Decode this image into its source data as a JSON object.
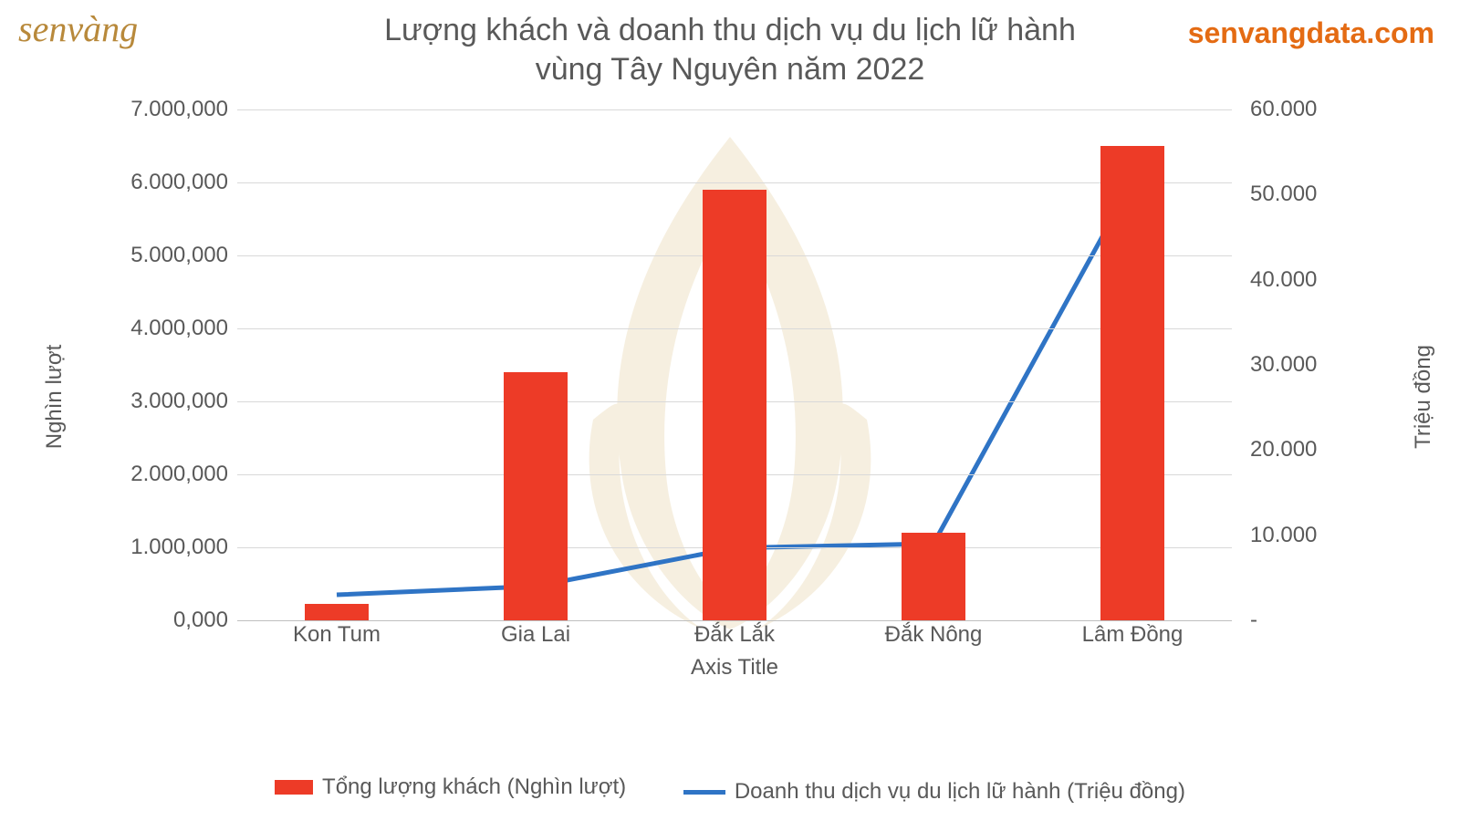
{
  "branding": {
    "logo_text": "senvàng",
    "logo_color": "#b8893b",
    "site_url": "senvangdata.com",
    "site_url_color": "#e46b13"
  },
  "chart": {
    "type": "bar+line-dual-axis",
    "title_line1": "Lượng khách và doanh thu dịch vụ du lịch lữ hành",
    "title_line2": "vùng Tây Nguyên năm 2022",
    "title_color": "#595959",
    "title_fontsize": 34,
    "background_color": "#ffffff",
    "grid_color": "#d9d9d9",
    "categories": [
      "Kon Tum",
      "Gia Lai",
      "Đắk Lắk",
      "Đắk Nông",
      "Lâm Đồng"
    ],
    "x_axis_title": "Axis Title",
    "bars": {
      "label": "Tổng lượng khách (Nghìn lượt)",
      "values": [
        0.22,
        3.4,
        5.9,
        1.2,
        6.5
      ],
      "color": "#ed3b27",
      "bar_width_fraction": 0.32
    },
    "line": {
      "label": "Doanh thu dịch vụ du lịch lữ hành (Triệu đồng)",
      "values": [
        3.0,
        4.0,
        8.5,
        9.0,
        51.5
      ],
      "color": "#2f74c5",
      "line_width": 5,
      "marker": "none"
    },
    "y_left": {
      "title": "Nghìn lượt",
      "min": 0,
      "max": 7,
      "ticks": [
        0,
        1,
        2,
        3,
        4,
        5,
        6,
        7
      ],
      "tick_labels": [
        "0,000",
        "1.000,000",
        "2.000,000",
        "3.000,000",
        "4.000,000",
        "5.000,000",
        "6.000,000",
        "7.000,000"
      ]
    },
    "y_right": {
      "title": "Triệu đồng",
      "min": 0,
      "max": 60,
      "ticks": [
        0,
        10,
        20,
        30,
        40,
        50,
        60
      ],
      "tick_labels": [
        "-",
        "10.000",
        "20.000",
        "30.000",
        "40.000",
        "50.000",
        "60.000"
      ]
    },
    "label_fontsize": 24,
    "label_color": "#595959",
    "watermark_color": "#cfa24d"
  }
}
